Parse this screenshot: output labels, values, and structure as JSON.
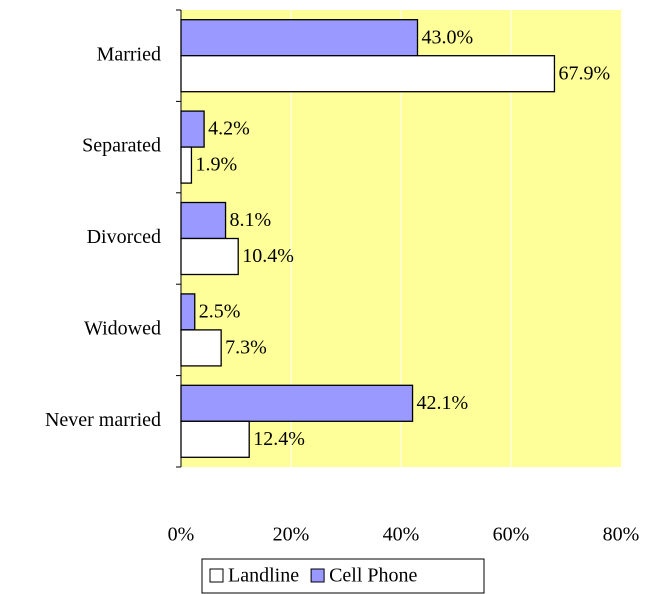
{
  "chart_data": {
    "type": "bar",
    "orientation": "horizontal",
    "categories": [
      "Married",
      "Separated",
      "Divorced",
      "Widowed",
      "Never married"
    ],
    "series": [
      {
        "name": "Landline",
        "color": "#ffffff",
        "values": [
          67.9,
          1.9,
          10.4,
          7.3,
          12.4
        ],
        "value_labels": [
          "67.9%",
          "1.9%",
          "10.4%",
          "7.3%",
          "12.4%"
        ]
      },
      {
        "name": "Cell Phone",
        "color": "#9999ff",
        "values": [
          43.0,
          4.2,
          8.1,
          2.5,
          42.1
        ],
        "value_labels": [
          "43.0%",
          "4.2%",
          "8.1%",
          "2.5%",
          "42.1%"
        ]
      }
    ],
    "xlim": [
      0,
      80
    ],
    "xticks": [
      {
        "value": 0,
        "label": "0%"
      },
      {
        "value": 20,
        "label": "20%"
      },
      {
        "value": 40,
        "label": "40%"
      },
      {
        "value": 60,
        "label": "60%"
      },
      {
        "value": 80,
        "label": "80%"
      }
    ],
    "grid": true,
    "plot_background": "#ffff99",
    "legend": "bottom"
  }
}
